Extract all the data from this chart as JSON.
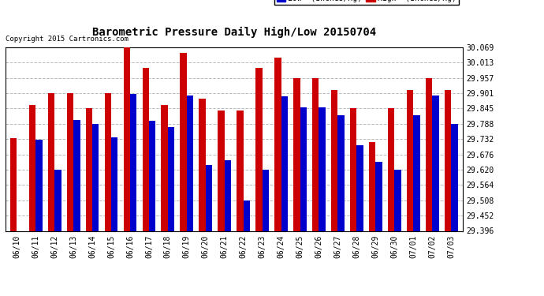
{
  "title": "Barometric Pressure Daily High/Low 20150704",
  "copyright": "Copyright 2015 Cartronics.com",
  "low_color": "#0000cc",
  "high_color": "#cc0000",
  "background_color": "#ffffff",
  "grid_color": "#bbbbbb",
  "ylim_min": 29.396,
  "ylim_max": 30.069,
  "yticks": [
    29.396,
    29.452,
    29.508,
    29.564,
    29.62,
    29.676,
    29.732,
    29.788,
    29.845,
    29.901,
    29.957,
    30.013,
    30.069
  ],
  "dates": [
    "06/10",
    "06/11",
    "06/12",
    "06/13",
    "06/14",
    "06/15",
    "06/16",
    "06/17",
    "06/18",
    "06/19",
    "06/20",
    "06/21",
    "06/22",
    "06/23",
    "06/24",
    "06/25",
    "06/26",
    "06/27",
    "06/28",
    "06/29",
    "06/30",
    "07/01",
    "07/02",
    "07/03"
  ],
  "high_values": [
    29.737,
    29.858,
    29.901,
    29.901,
    29.845,
    29.901,
    30.069,
    29.993,
    29.857,
    30.05,
    29.88,
    29.838,
    29.838,
    29.993,
    30.03,
    29.957,
    29.957,
    29.913,
    29.845,
    29.722,
    29.845,
    29.913,
    29.957,
    29.913
  ],
  "low_values": [
    29.396,
    29.73,
    29.621,
    29.803,
    29.788,
    29.74,
    29.898,
    29.8,
    29.778,
    29.893,
    29.638,
    29.655,
    29.508,
    29.621,
    29.89,
    29.85,
    29.848,
    29.82,
    29.71,
    29.648,
    29.621,
    29.82,
    29.893,
    29.788
  ],
  "bar_width": 0.35,
  "title_fontsize": 10,
  "copyright_fontsize": 6.5,
  "tick_fontsize": 7,
  "legend_fontsize": 7
}
